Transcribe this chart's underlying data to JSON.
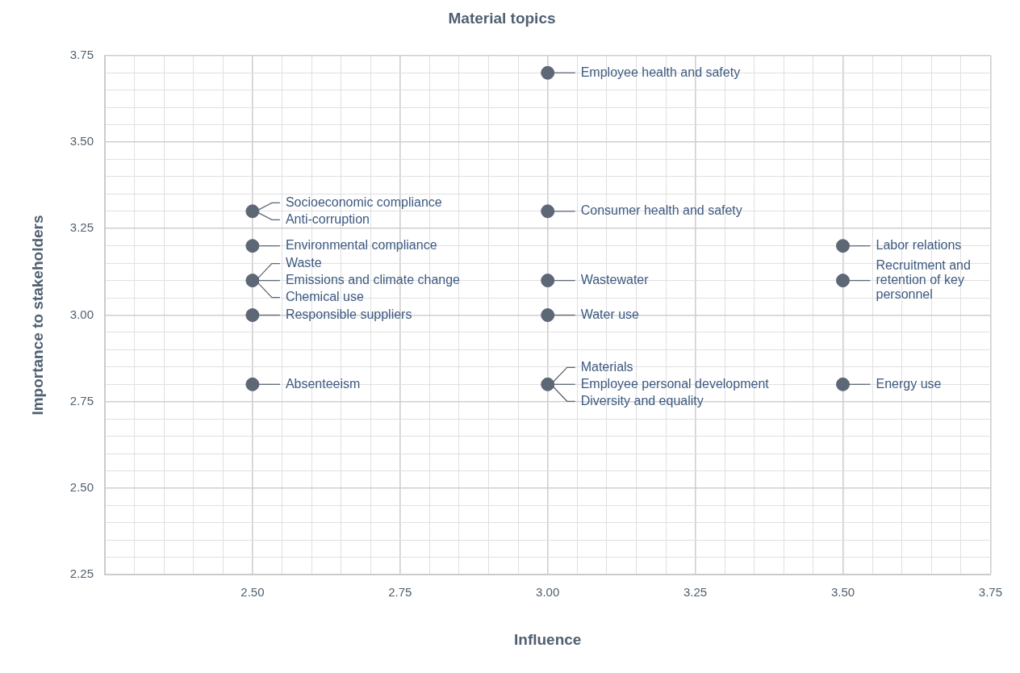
{
  "chart_data": {
    "type": "scatter",
    "title": "Material topics",
    "xlabel": "Influence",
    "ylabel": "Importance to stakeholders",
    "series": [
      {
        "color": "#5d6775",
        "x": [
          2.5,
          2.5,
          2.5,
          2.5,
          2.5,
          3.0,
          3.0,
          3.0,
          3.0,
          3.0,
          3.5,
          3.5,
          3.5
        ],
        "values": [
          3.3,
          3.2,
          3.1,
          3.0,
          2.8,
          3.7,
          3.3,
          3.1,
          3.0,
          2.8,
          3.2,
          3.1,
          2.8
        ]
      }
    ],
    "xlim": [
      2.25,
      3.75
    ],
    "ylim": [
      2.25,
      3.75
    ],
    "xticks": [
      {
        "value": 2.3,
        "label": null
      },
      {
        "value": 2.35,
        "label": null
      },
      {
        "value": 2.4,
        "label": null
      },
      {
        "value": 2.45,
        "label": null
      },
      {
        "value": 2.5,
        "label": "2.50"
      },
      {
        "value": 2.55,
        "label": null
      },
      {
        "value": 2.6,
        "label": null
      },
      {
        "value": 2.65,
        "label": null
      },
      {
        "value": 2.7,
        "label": null
      },
      2.75,
      {
        "value": 2.8,
        "label": null
      },
      {
        "value": 2.85,
        "label": null
      },
      {
        "value": 2.9,
        "label": null
      },
      {
        "value": 2.95,
        "label": null
      },
      {
        "value": 3.0,
        "label": "3.00"
      },
      {
        "value": 3.05,
        "label": null
      },
      {
        "value": 3.1,
        "label": null
      },
      {
        "value": 3.15,
        "label": null
      },
      {
        "value": 3.2,
        "label": null
      },
      3.25,
      {
        "value": 3.3,
        "label": null
      },
      {
        "value": 3.35,
        "label": null
      },
      {
        "value": 3.4,
        "label": null
      },
      {
        "value": 3.45,
        "label": null
      },
      {
        "value": 3.5,
        "label": "3.50"
      },
      {
        "value": 3.55,
        "label": null
      },
      {
        "value": 3.6,
        "label": null
      },
      {
        "value": 3.65,
        "label": null
      },
      {
        "value": 3.7,
        "label": null
      },
      3.75
    ],
    "yticks": [
      2.25,
      {
        "value": 2.3,
        "label": null
      },
      {
        "value": 2.35,
        "label": null
      },
      {
        "value": 2.4,
        "label": null
      },
      {
        "value": 2.45,
        "label": null
      },
      {
        "value": 2.5,
        "label": "2.50"
      },
      {
        "value": 2.55,
        "label": null
      },
      {
        "value": 2.6,
        "label": null
      },
      {
        "value": 2.65,
        "label": null
      },
      {
        "value": 2.7,
        "label": null
      },
      2.75,
      {
        "value": 2.8,
        "label": null
      },
      {
        "value": 2.85,
        "label": null
      },
      {
        "value": 2.9,
        "label": null
      },
      {
        "value": 2.95,
        "label": null
      },
      {
        "value": 3.0,
        "label": "3.00"
      },
      {
        "value": 3.05,
        "label": null
      },
      {
        "value": 3.1,
        "label": null
      },
      {
        "value": 3.15,
        "label": null
      },
      {
        "value": 3.2,
        "label": null
      },
      3.25,
      {
        "value": 3.3,
        "label": null
      },
      {
        "value": 3.35,
        "label": null
      },
      {
        "value": 3.4,
        "label": null
      },
      {
        "value": 3.45,
        "label": null
      },
      {
        "value": 3.5,
        "label": "3.50"
      },
      {
        "value": 3.55,
        "label": null
      },
      {
        "value": 3.6,
        "label": null
      },
      {
        "value": 3.65,
        "label": null
      },
      {
        "value": 3.7,
        "label": null
      },
      3.75
    ],
    "grid": true,
    "legend": false,
    "marker": "circle",
    "annotations": [
      {
        "text": "Socioeconomic compliance",
        "x": 2.5,
        "y": 3.3
      },
      {
        "text": "Anti-corruption",
        "x": 2.5,
        "y": 3.3
      },
      {
        "text": "Environmental compliance",
        "x": 2.5,
        "y": 3.2
      },
      {
        "text": "Waste",
        "x": 2.5,
        "y": 3.1
      },
      {
        "text": "Emissions and climate change",
        "x": 2.5,
        "y": 3.1
      },
      {
        "text": "Chemical use",
        "x": 2.5,
        "y": 3.1
      },
      {
        "text": "Responsible suppliers",
        "x": 2.5,
        "y": 3.0
      },
      {
        "text": "Absenteeism",
        "x": 2.5,
        "y": 2.8
      },
      {
        "text": "Employee health and safety",
        "x": 3.0,
        "y": 3.7
      },
      {
        "text": "Consumer health and safety",
        "x": 3.0,
        "y": 3.3
      },
      {
        "text": "Wastewater",
        "x": 3.0,
        "y": 3.1
      },
      {
        "text": "Water use",
        "x": 3.0,
        "y": 3.0
      },
      {
        "text": "Materials",
        "x": 3.0,
        "y": 2.8
      },
      {
        "text": "Employee personal development",
        "x": 3.0,
        "y": 2.8
      },
      {
        "text": "Diversity and equality",
        "x": 3.0,
        "y": 2.8
      },
      {
        "text": "Labor relations",
        "x": 3.5,
        "y": 3.2
      },
      {
        "text": "Recruitment and retention of key personnel",
        "x": 3.5,
        "y": 3.1
      },
      {
        "text": "Energy use",
        "x": 3.5,
        "y": 2.8
      }
    ]
  }
}
